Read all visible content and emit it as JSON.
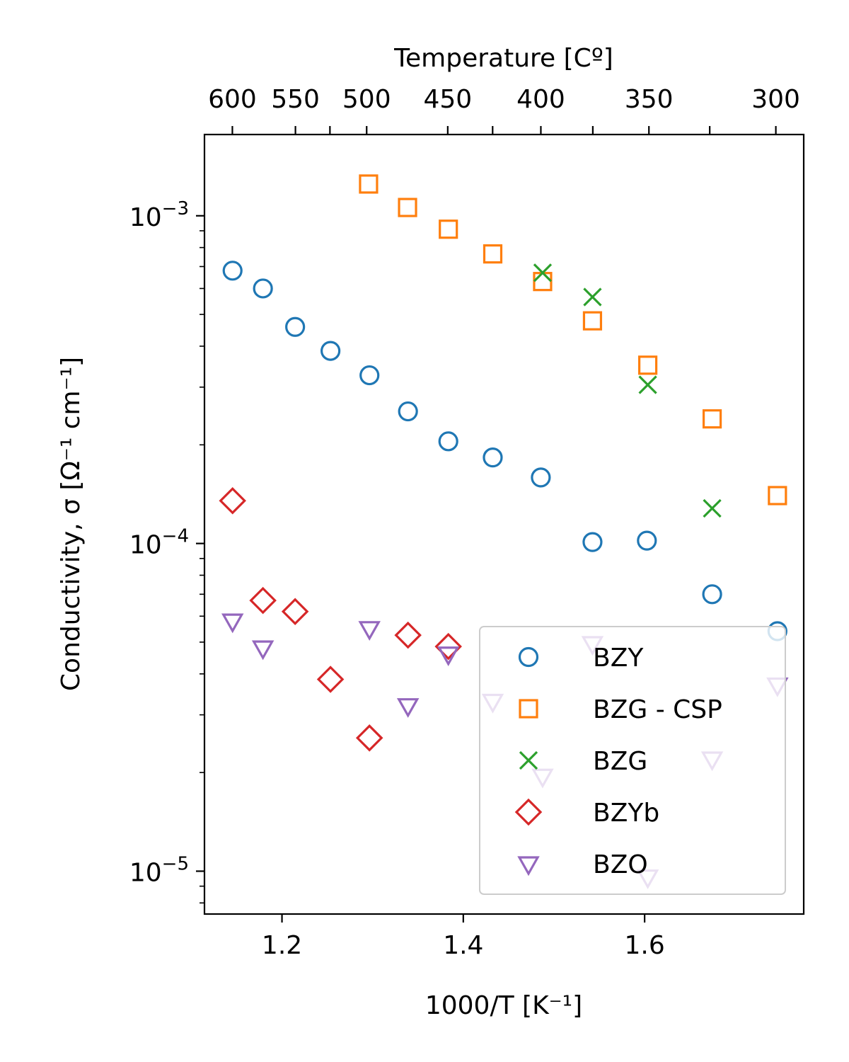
{
  "chart_data": {
    "type": "scatter",
    "title": "",
    "xlabel": "1000/T  [K⁻¹]",
    "ylabel": "Conductivity, σ  [Ω⁻¹ cm⁻¹]",
    "top_xlabel": "Temperature  [Cº]",
    "xlim": [
      1.1145,
      1.7755
    ],
    "ylim": [
      7.4e-06,
      0.00177
    ],
    "yscale": "log",
    "x_ticks": [
      1.2,
      1.4,
      1.6
    ],
    "x_tick_labels": [
      "1.2",
      "1.4",
      "1.6"
    ],
    "y_major_ticks": [
      {
        "value": 0.001,
        "base": "10",
        "exp": "−3"
      },
      {
        "value": 0.0001,
        "base": "10",
        "exp": "−4"
      },
      {
        "value": 1e-05,
        "base": "10",
        "exp": "−5"
      }
    ],
    "top_ticks": [
      {
        "celsius": 600,
        "label": "600"
      },
      {
        "celsius": 550,
        "label": "550"
      },
      {
        "celsius": 500,
        "label": "500"
      },
      {
        "celsius": 450,
        "label": "450"
      },
      {
        "celsius": 400,
        "label": "400"
      },
      {
        "celsius": 350,
        "label": "350"
      },
      {
        "celsius": 300,
        "label": "300"
      }
    ],
    "extra_top_ticks_celsius": [
      525,
      425,
      375,
      325
    ],
    "grid": false,
    "legend_position": "lower-right",
    "series": [
      {
        "name": "BZY",
        "marker": "circle",
        "color": "#1f77b4",
        "points": [
          [
            1.1455,
            0.00068
          ],
          [
            1.179,
            0.0006
          ],
          [
            1.2145,
            0.000458
          ],
          [
            1.2535,
            0.000387
          ],
          [
            1.2965,
            0.000326
          ],
          [
            1.339,
            0.000253
          ],
          [
            1.3835,
            0.000205
          ],
          [
            1.4325,
            0.000183
          ],
          [
            1.4855,
            0.000159
          ],
          [
            1.5425,
            0.000101
          ],
          [
            1.6025,
            0.000102
          ],
          [
            1.6745,
            7e-05
          ],
          [
            1.7465,
            5.4e-05
          ]
        ]
      },
      {
        "name": "BZG - CSP",
        "marker": "square",
        "color": "#ff7f0e",
        "points": [
          [
            1.2955,
            0.00125
          ],
          [
            1.3385,
            0.00106
          ],
          [
            1.3835,
            0.00091
          ],
          [
            1.4325,
            0.000765
          ],
          [
            1.4875,
            0.00063
          ],
          [
            1.5425,
            0.000478
          ],
          [
            1.6035,
            0.00035
          ],
          [
            1.6745,
            0.00024
          ],
          [
            1.7465,
            0.00014
          ]
        ]
      },
      {
        "name": "BZG",
        "marker": "x",
        "color": "#2ca02c",
        "points": [
          [
            1.4875,
            0.00067
          ],
          [
            1.5425,
            0.000565
          ],
          [
            1.6035,
            0.000305
          ],
          [
            1.6745,
            0.000128
          ]
        ]
      },
      {
        "name": "BZYb",
        "marker": "diamond",
        "color": "#d62728",
        "points": [
          [
            1.1455,
            0.000135
          ],
          [
            1.179,
            6.7e-05
          ],
          [
            1.2145,
            6.2e-05
          ],
          [
            1.2535,
            3.85e-05
          ],
          [
            1.2965,
            2.55e-05
          ],
          [
            1.339,
            5.25e-05
          ],
          [
            1.3835,
            4.85e-05
          ]
        ]
      },
      {
        "name": "BZO",
        "marker": "triangle-down",
        "color": "#9467bd",
        "points": [
          [
            1.1455,
            5.8e-05
          ],
          [
            1.179,
            4.8e-05
          ],
          [
            1.2965,
            5.5e-05
          ],
          [
            1.339,
            3.2e-05
          ],
          [
            1.3835,
            4.6e-05
          ],
          [
            1.4325,
            3.3e-05
          ],
          [
            1.4875,
            1.95e-05
          ],
          [
            1.5425,
            4.95e-05
          ],
          [
            1.6035,
            9.6e-06
          ],
          [
            1.6745,
            2.2e-05
          ],
          [
            1.7465,
            3.7e-05
          ]
        ]
      }
    ]
  }
}
